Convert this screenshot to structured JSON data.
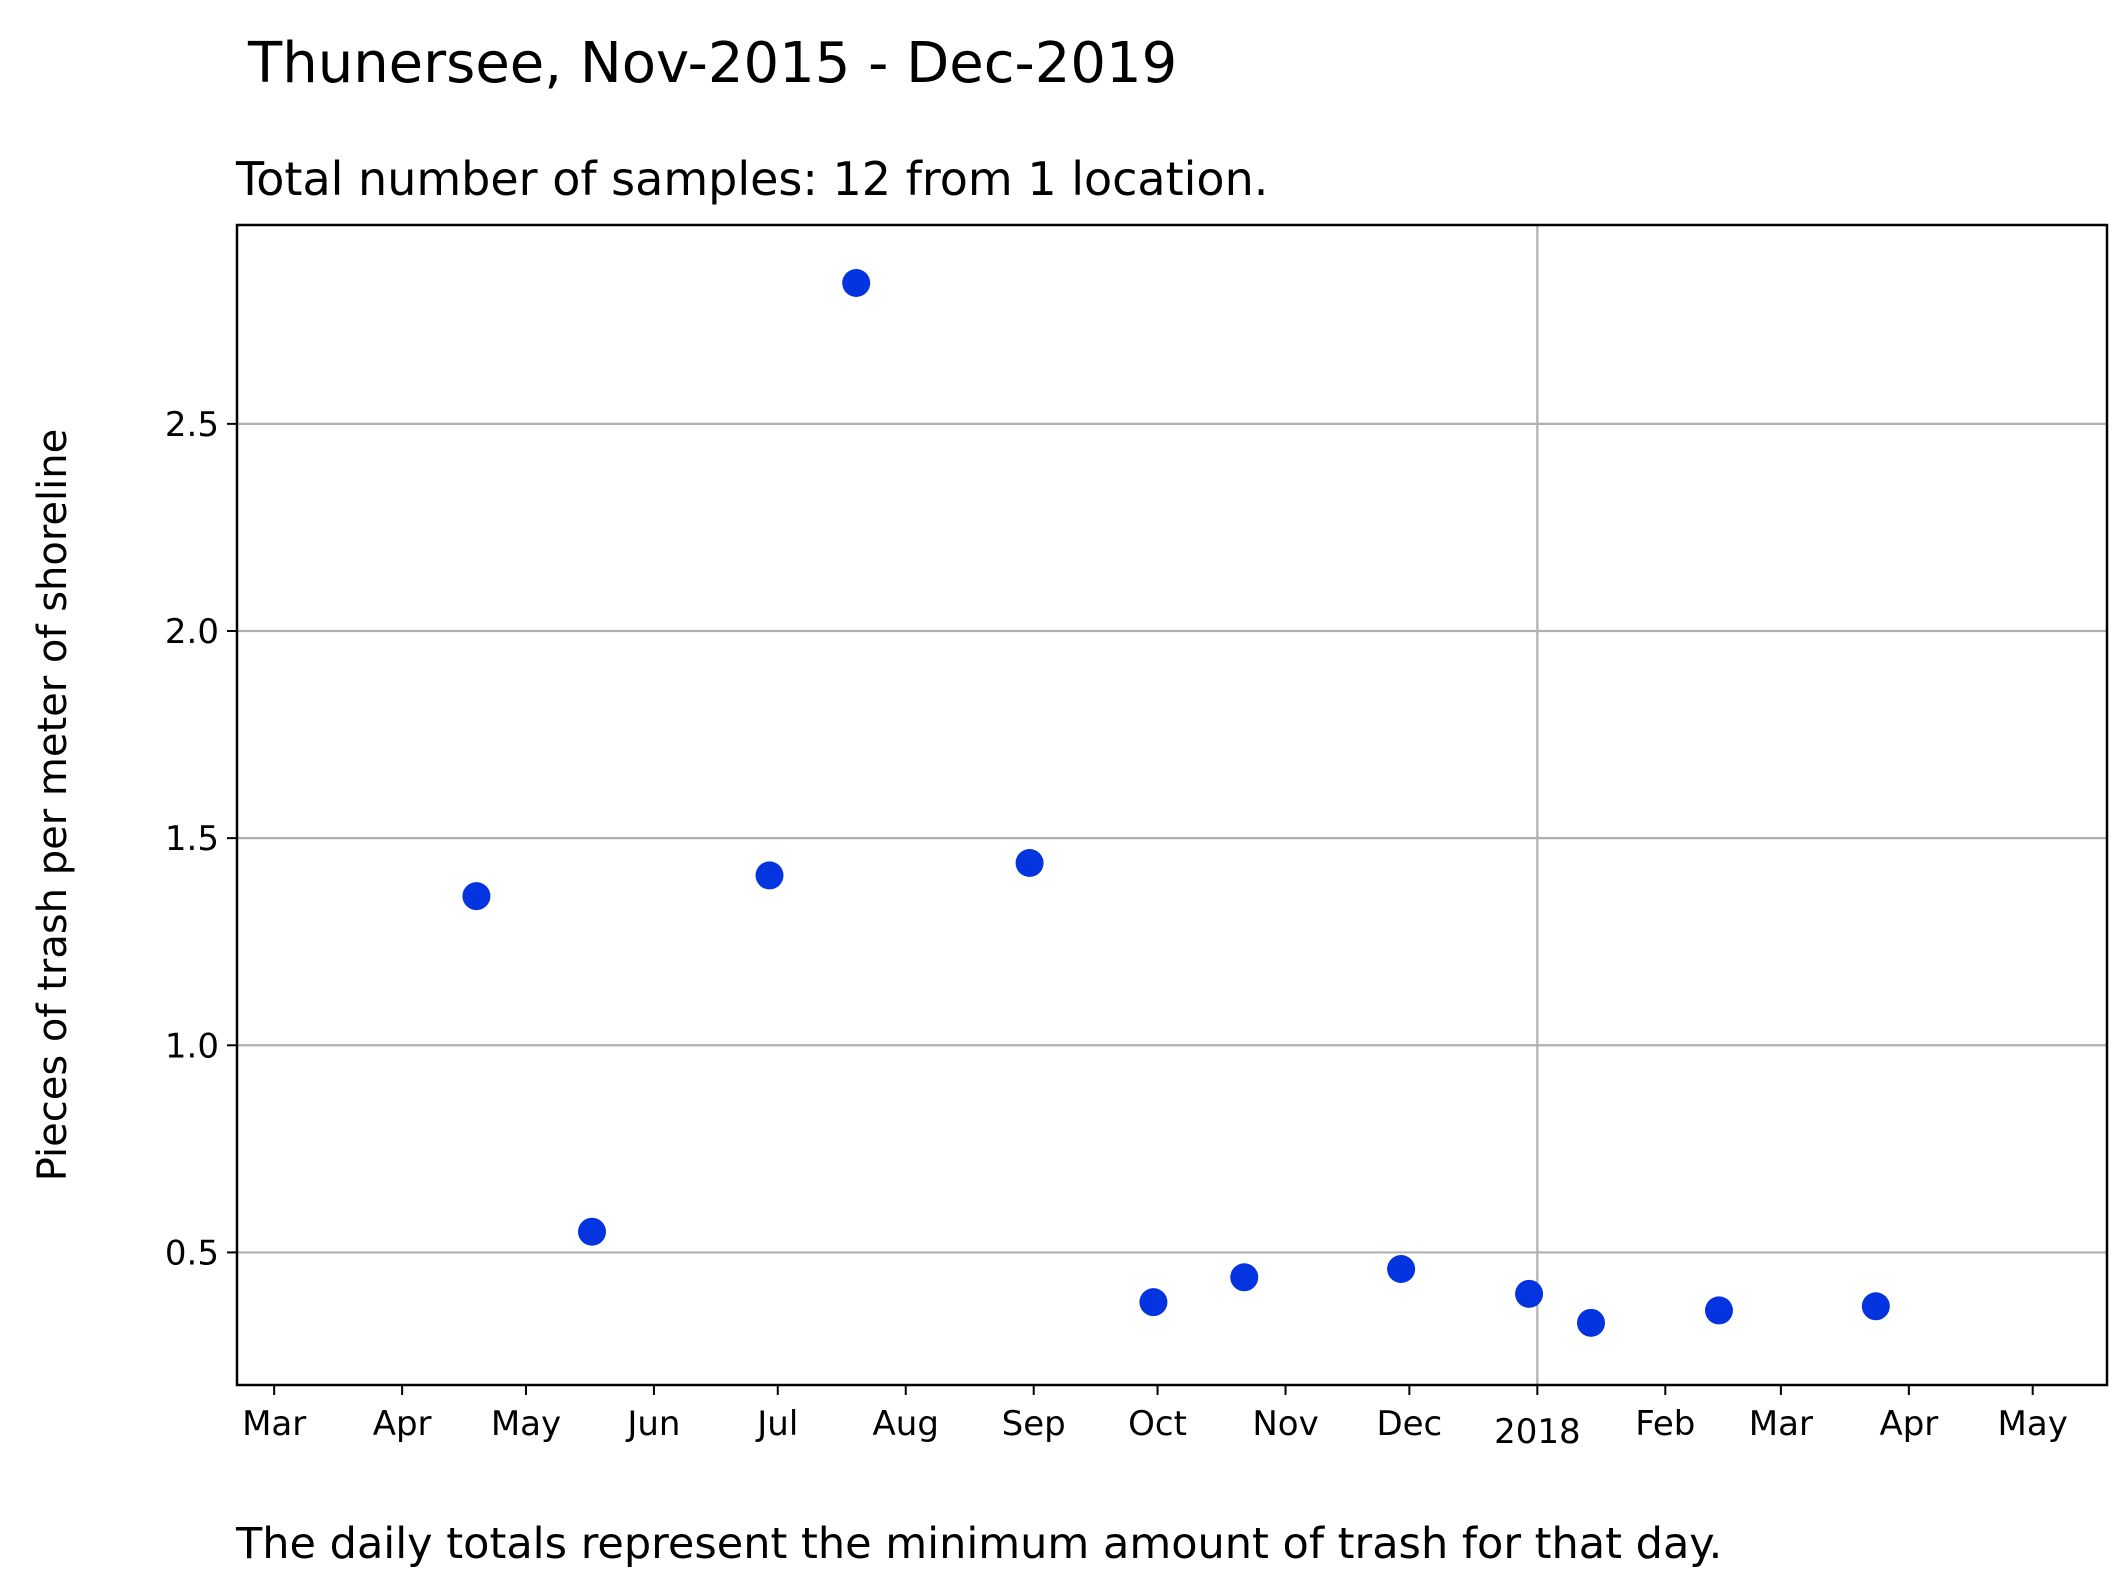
{
  "chart_data": {
    "type": "scatter",
    "title": "Thunersee, Nov-2015 - Dec-2019",
    "subtitle": "Total number of samples: 12 from 1 location.",
    "xlabel": "",
    "ylabel": "Pieces of trash per meter of shoreline",
    "footnote": "The daily totals represent the minimum amount of trash for that day.",
    "xlim": [
      "2017-02-20",
      "2018-05-19"
    ],
    "ylim": [
      0.18,
      2.98
    ],
    "grid": true,
    "marker_color": "#0433e0",
    "x_ticks": [
      {
        "date": "2017-03-01",
        "label": "Mar"
      },
      {
        "date": "2017-04-01",
        "label": "Apr"
      },
      {
        "date": "2017-05-01",
        "label": "May"
      },
      {
        "date": "2017-06-01",
        "label": "Jun"
      },
      {
        "date": "2017-07-01",
        "label": "Jul"
      },
      {
        "date": "2017-08-01",
        "label": "Aug"
      },
      {
        "date": "2017-09-01",
        "label": "Sep"
      },
      {
        "date": "2017-10-01",
        "label": "Oct"
      },
      {
        "date": "2017-11-01",
        "label": "Nov"
      },
      {
        "date": "2017-12-01",
        "label": "Dec"
      },
      {
        "date": "2018-01-01",
        "label": "2018"
      },
      {
        "date": "2018-02-01",
        "label": "Feb"
      },
      {
        "date": "2018-03-01",
        "label": "Mar"
      },
      {
        "date": "2018-04-01",
        "label": "Apr"
      },
      {
        "date": "2018-05-01",
        "label": "May"
      }
    ],
    "y_ticks": [
      {
        "value": 0.5,
        "label": "0.5"
      },
      {
        "value": 1.0,
        "label": "1.0"
      },
      {
        "value": 1.5,
        "label": "1.5"
      },
      {
        "value": 2.0,
        "label": "2.0"
      },
      {
        "value": 2.5,
        "label": "2.5"
      }
    ],
    "points": [
      {
        "x": "2017-04-19",
        "y": 1.36
      },
      {
        "x": "2017-05-17",
        "y": 0.55
      },
      {
        "x": "2017-06-29",
        "y": 1.41
      },
      {
        "x": "2017-07-20",
        "y": 2.84
      },
      {
        "x": "2017-08-31",
        "y": 1.44
      },
      {
        "x": "2017-09-30",
        "y": 0.38
      },
      {
        "x": "2017-10-22",
        "y": 0.44
      },
      {
        "x": "2017-11-29",
        "y": 0.46
      },
      {
        "x": "2017-12-30",
        "y": 0.4
      },
      {
        "x": "2018-01-14",
        "y": 0.33
      },
      {
        "x": "2018-02-14",
        "y": 0.36
      },
      {
        "x": "2018-03-24",
        "y": 0.37
      }
    ]
  }
}
